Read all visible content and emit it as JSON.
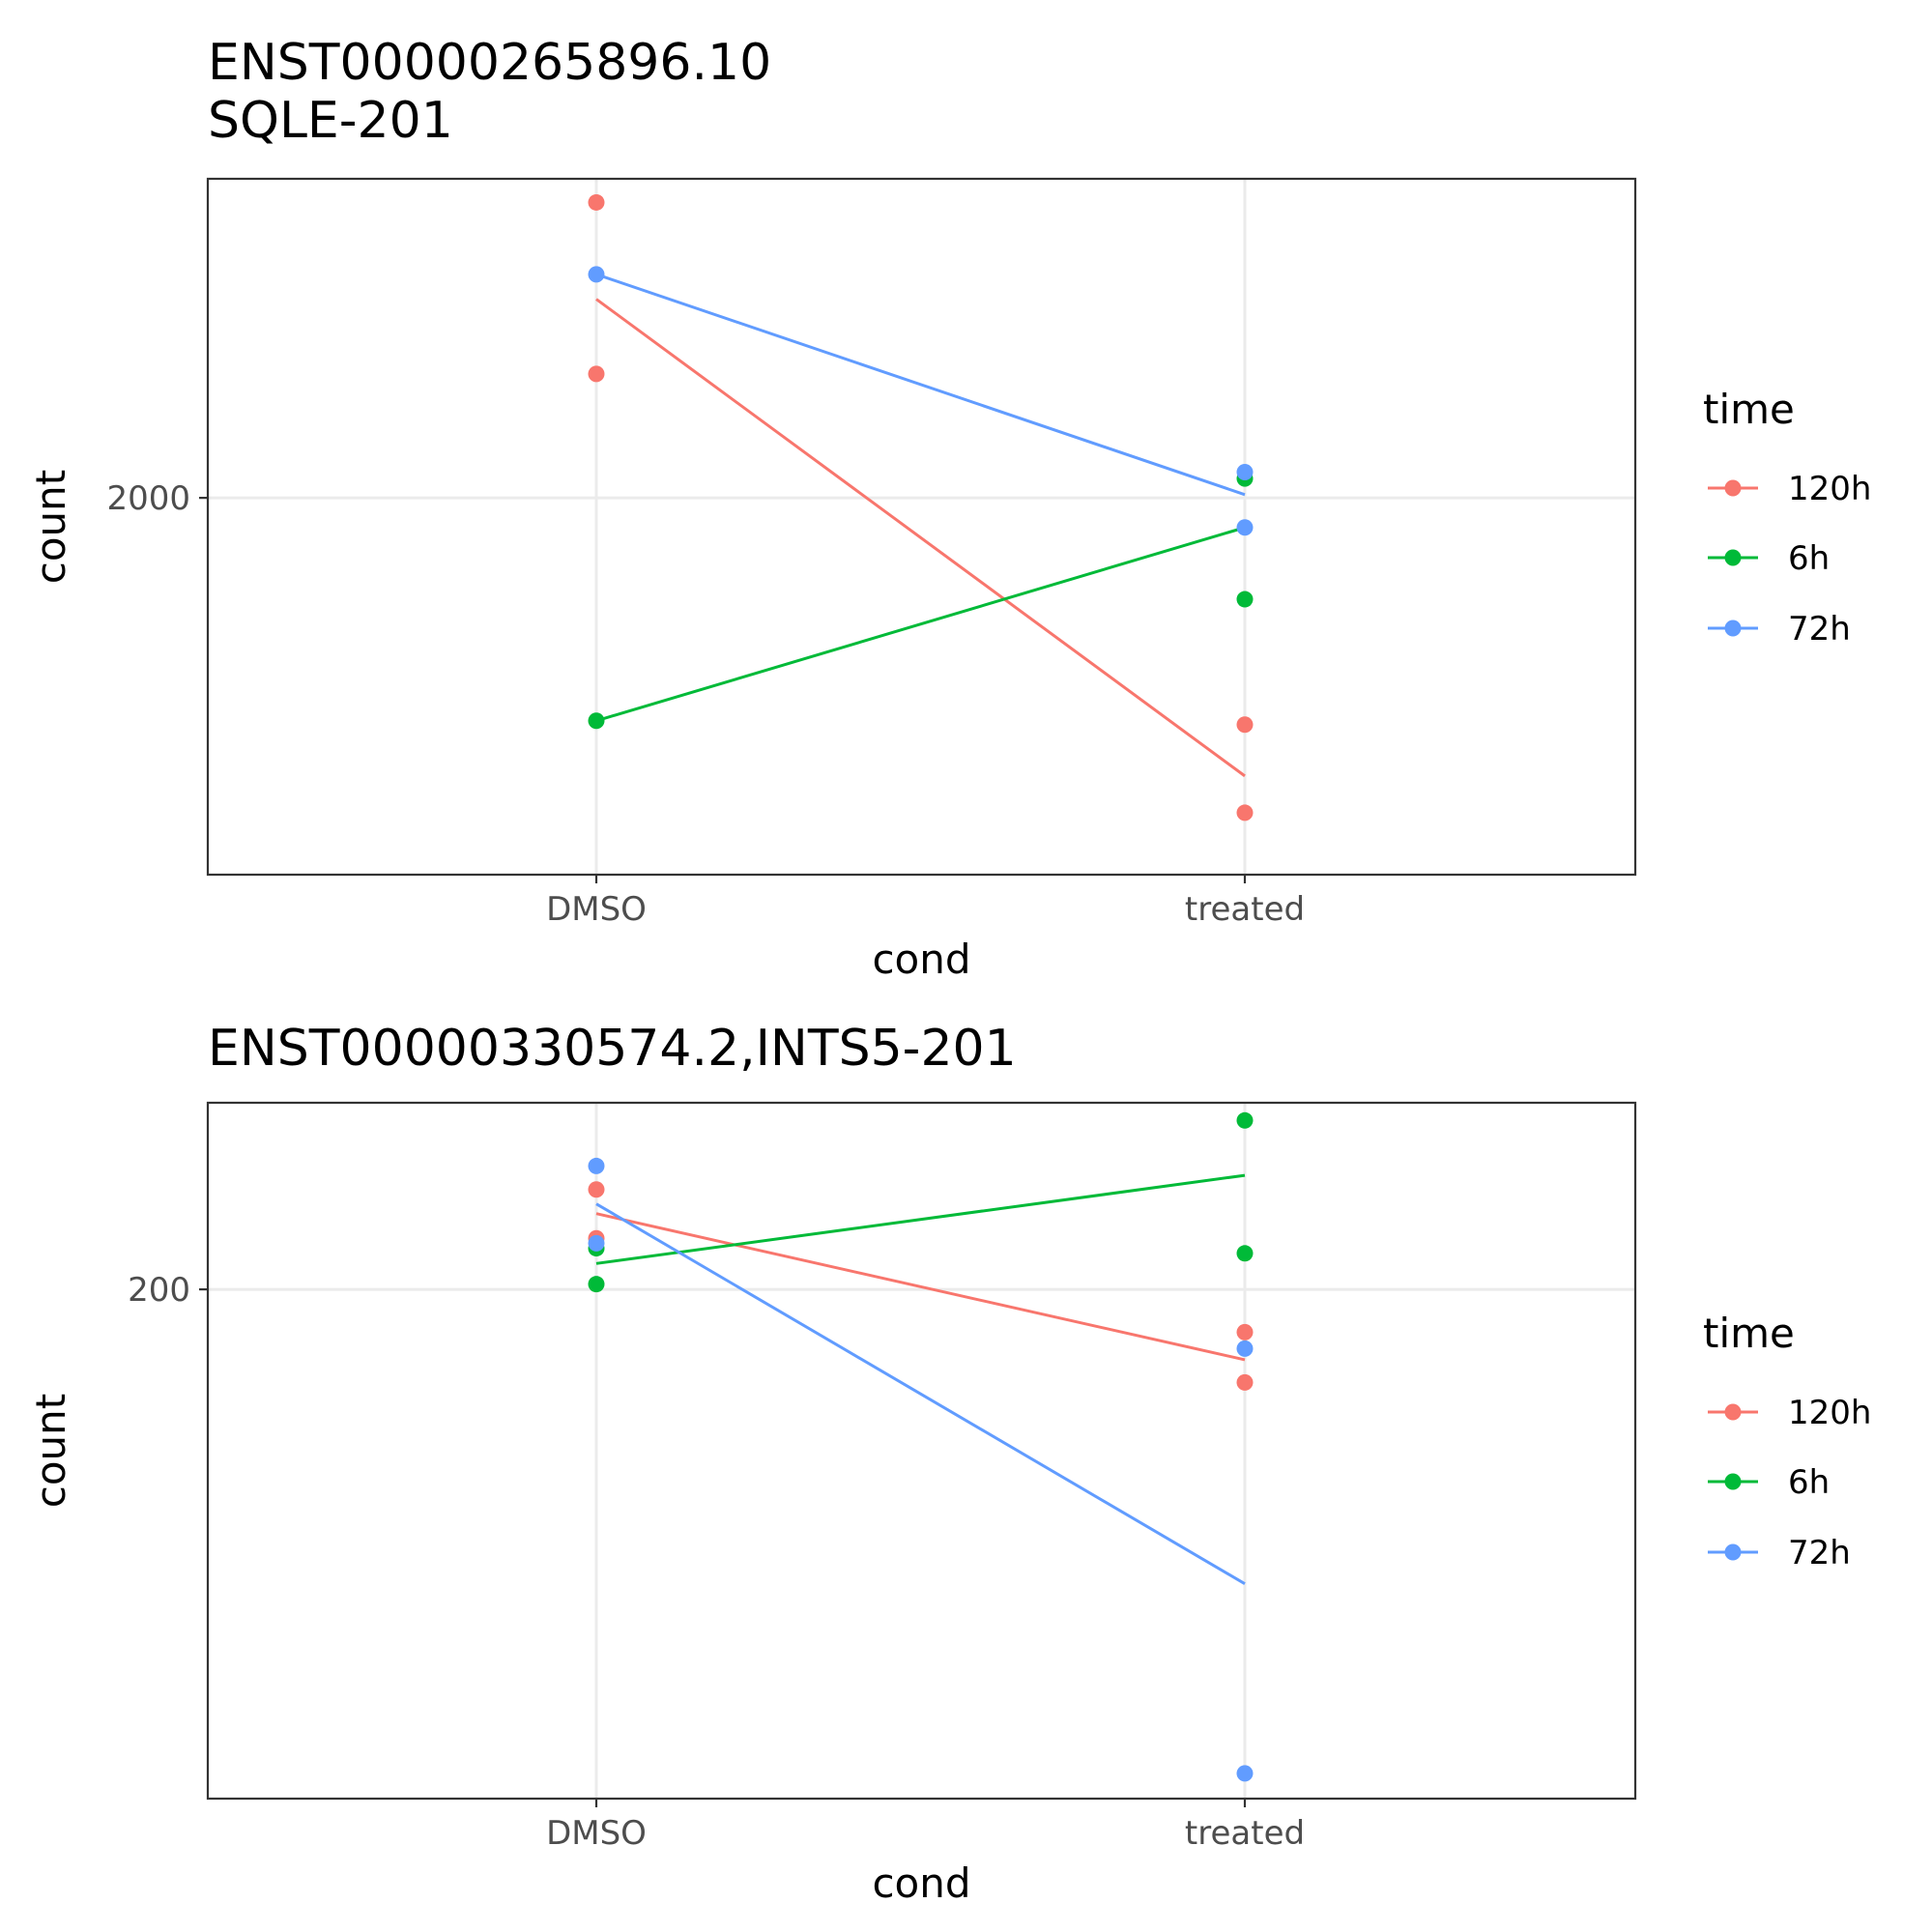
{
  "colors": {
    "120h": "#F8766D",
    "6h": "#00BA38",
    "72h": "#619CFF"
  },
  "legend": {
    "title": "time",
    "entries": [
      {
        "label": "120h",
        "color": "#F8766D"
      },
      {
        "label": "6h",
        "color": "#00BA38"
      },
      {
        "label": "72h",
        "color": "#619CFF"
      }
    ],
    "placement": "right"
  },
  "chart_data": [
    {
      "type": "scatter",
      "title_lines": [
        "ENST00000265896.10",
        "SQLE-201"
      ],
      "xlabel": "cond",
      "ylabel": "count",
      "y_scale": "log10",
      "categories": [
        "DMSO",
        "treated"
      ],
      "y_ticks": [
        {
          "value": 2000,
          "label": "2000"
        }
      ],
      "ylim": [
        1497,
        2556
      ],
      "grid": true,
      "series": [
        {
          "name": "120h",
          "color": "#F8766D",
          "points": [
            {
              "x": "DMSO",
              "y": 2510
            },
            {
              "x": "DMSO",
              "y": 2200
            },
            {
              "x": "treated",
              "y": 1680
            },
            {
              "x": "treated",
              "y": 1570
            }
          ],
          "line": [
            {
              "x": "DMSO",
              "y": 2330
            },
            {
              "x": "treated",
              "y": 1615
            }
          ]
        },
        {
          "name": "6h",
          "color": "#00BA38",
          "points": [
            {
              "x": "DMSO",
              "y": 1685
            },
            {
              "x": "treated",
              "y": 2030
            },
            {
              "x": "treated",
              "y": 1850
            }
          ],
          "line": [
            {
              "x": "DMSO",
              "y": 1685
            },
            {
              "x": "treated",
              "y": 1955
            }
          ]
        },
        {
          "name": "72h",
          "color": "#619CFF",
          "points": [
            {
              "x": "DMSO",
              "y": 2375
            },
            {
              "x": "treated",
              "y": 2040
            },
            {
              "x": "treated",
              "y": 1955
            }
          ],
          "line": [
            {
              "x": "DMSO",
              "y": 2375
            },
            {
              "x": "treated",
              "y": 2005
            }
          ]
        }
      ]
    },
    {
      "type": "scatter",
      "title_lines": [
        "ENST00000330574.2,INTS5-201"
      ],
      "xlabel": "cond",
      "ylabel": "count",
      "y_scale": "log10",
      "categories": [
        "DMSO",
        "treated"
      ],
      "y_ticks": [
        {
          "value": 200,
          "label": "200"
        }
      ],
      "ylim": [
        123,
        239
      ],
      "grid": true,
      "series": [
        {
          "name": "120h",
          "color": "#F8766D",
          "points": [
            {
              "x": "DMSO",
              "y": 220
            },
            {
              "x": "DMSO",
              "y": 210
            },
            {
              "x": "treated",
              "y": 192
            },
            {
              "x": "treated",
              "y": 183
            }
          ],
          "line": [
            {
              "x": "DMSO",
              "y": 215
            },
            {
              "x": "treated",
              "y": 187
            }
          ]
        },
        {
          "name": "6h",
          "color": "#00BA38",
          "points": [
            {
              "x": "DMSO",
              "y": 208
            },
            {
              "x": "DMSO",
              "y": 201
            },
            {
              "x": "treated",
              "y": 235
            },
            {
              "x": "treated",
              "y": 207
            }
          ],
          "line": [
            {
              "x": "DMSO",
              "y": 205
            },
            {
              "x": "treated",
              "y": 223
            }
          ]
        },
        {
          "name": "72h",
          "color": "#619CFF",
          "points": [
            {
              "x": "DMSO",
              "y": 225
            },
            {
              "x": "DMSO",
              "y": 209
            },
            {
              "x": "treated",
              "y": 189
            },
            {
              "x": "treated",
              "y": 126
            }
          ],
          "line": [
            {
              "x": "DMSO",
              "y": 217
            },
            {
              "x": "treated",
              "y": 151
            }
          ]
        }
      ]
    }
  ]
}
